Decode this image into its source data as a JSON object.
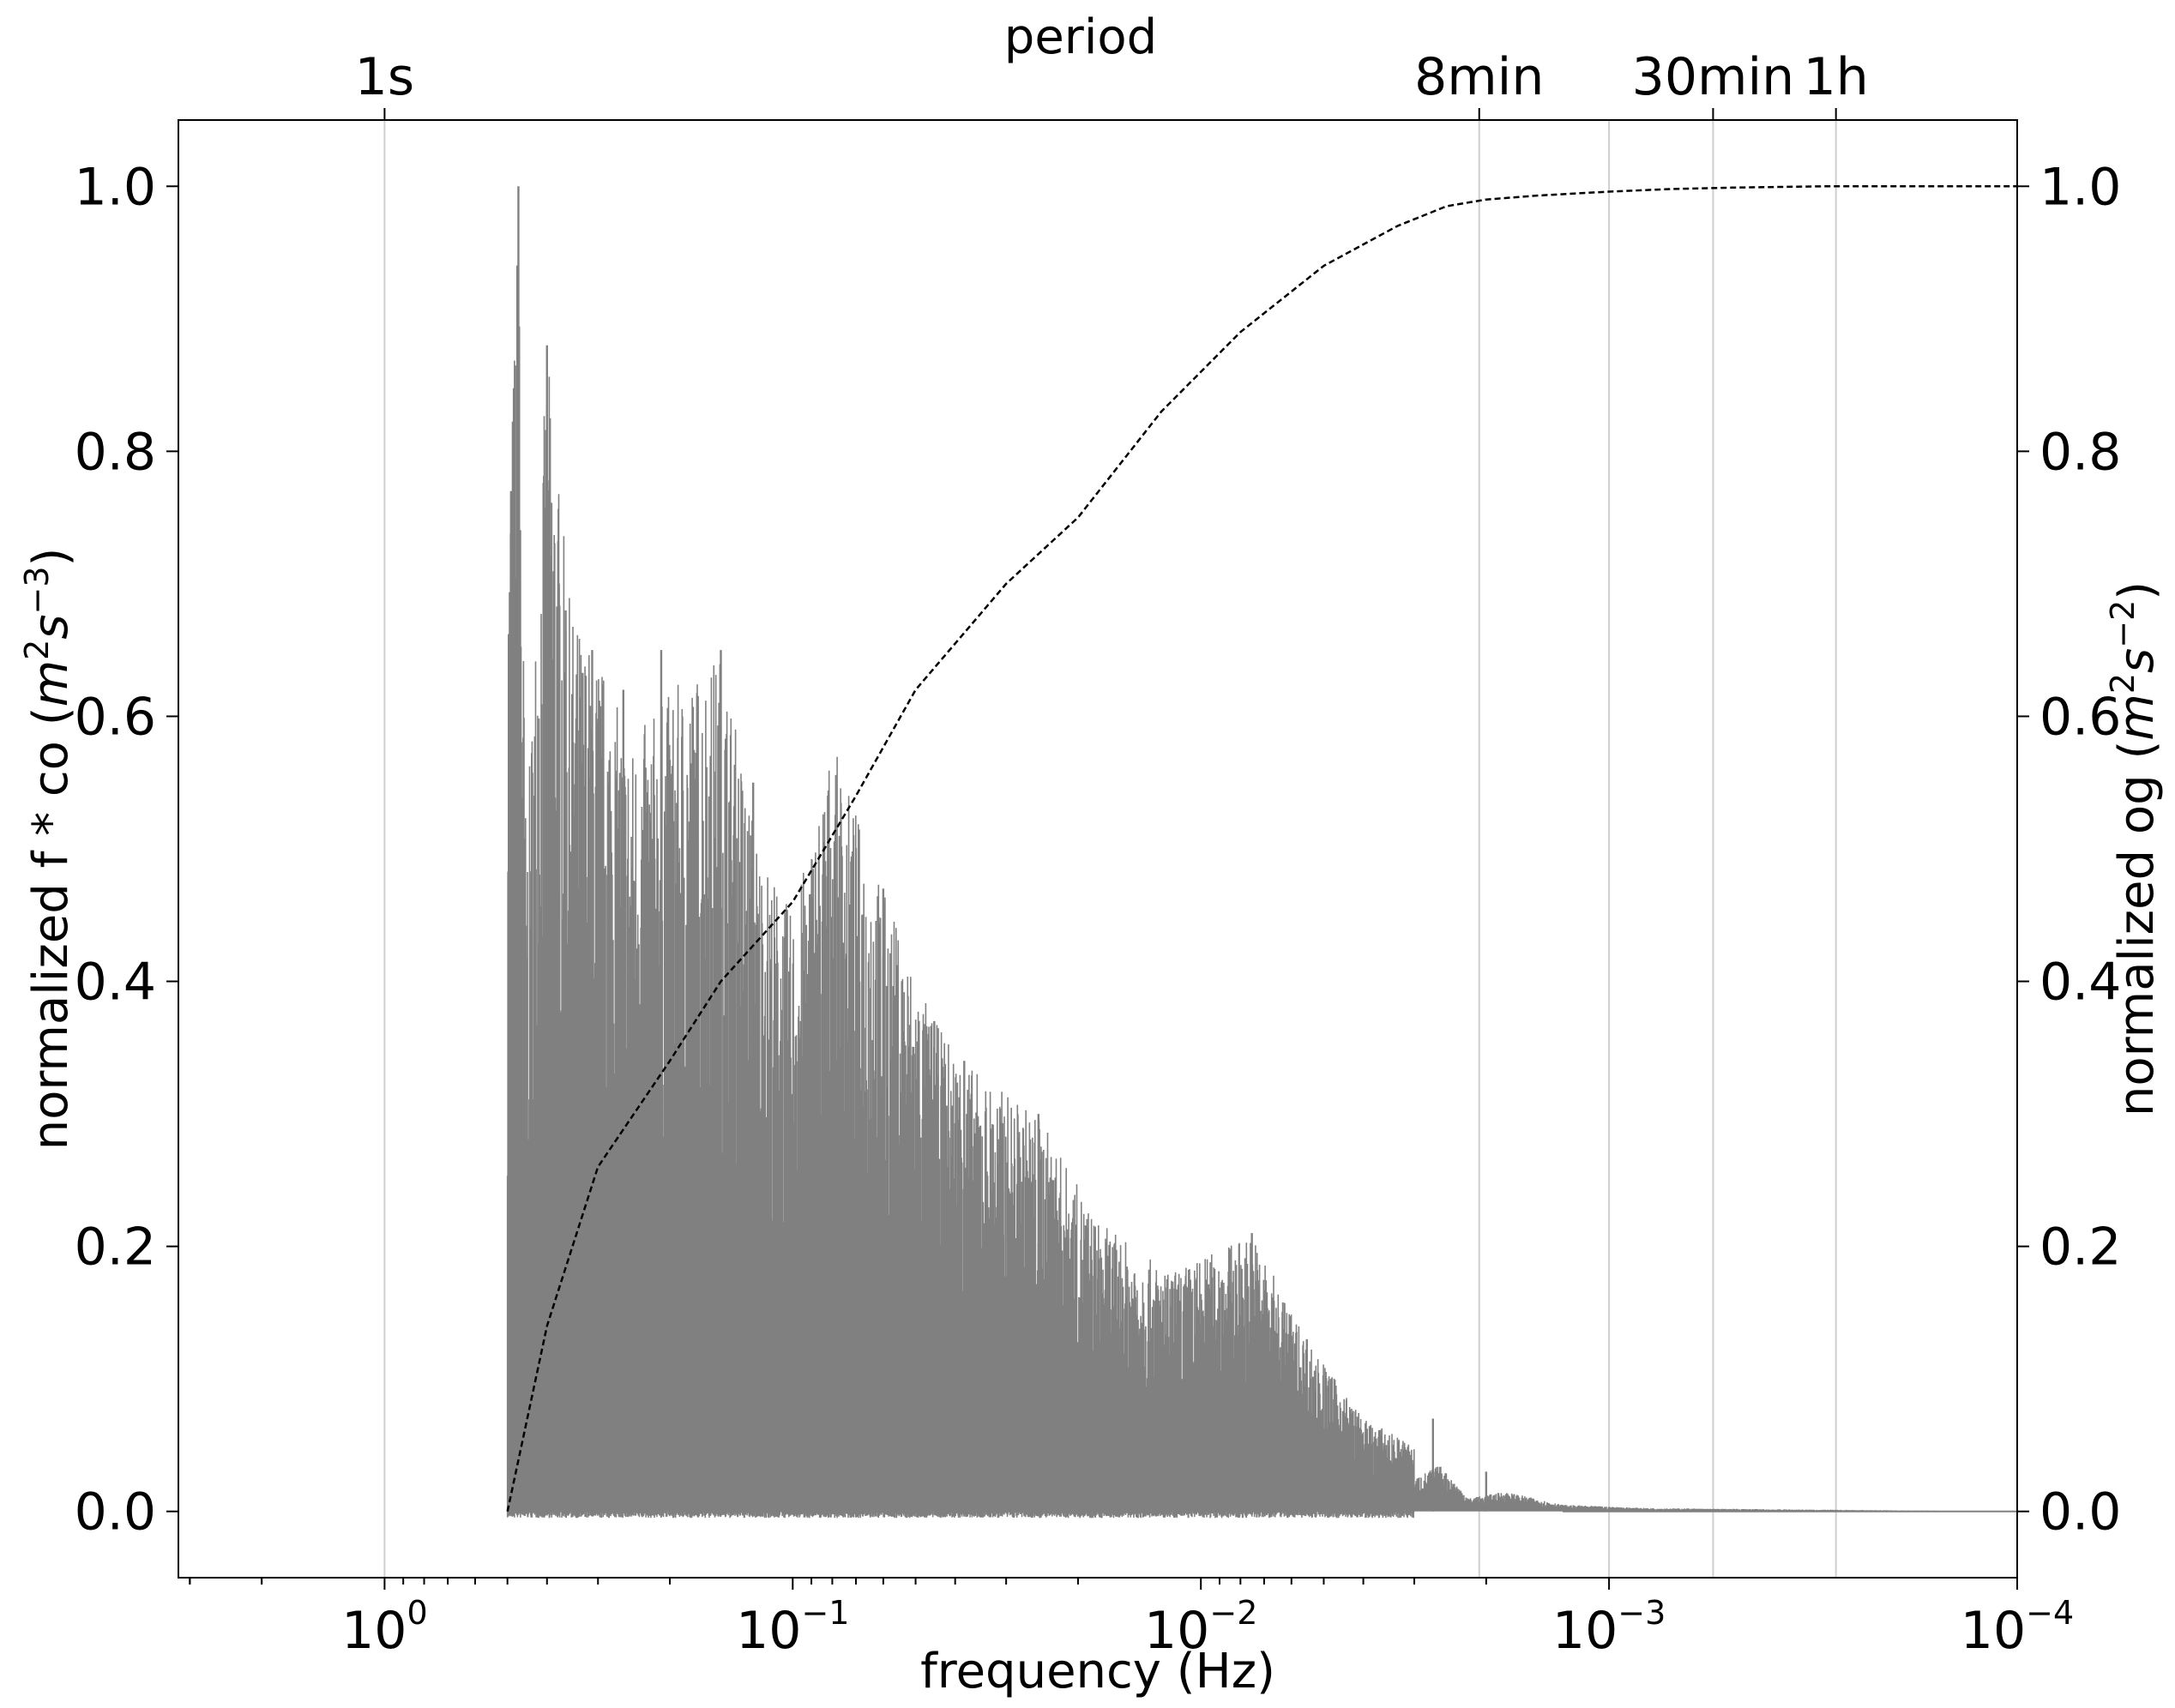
{
  "chart_data": {
    "type": "line",
    "x_axis": {
      "label": "frequency (Hz)",
      "scale": "log",
      "reversed": true,
      "range": [
        3.2,
        0.0001
      ],
      "ticks": [
        {
          "value": 1,
          "mantissa": "10",
          "exponent": "0"
        },
        {
          "value": 0.1,
          "mantissa": "10",
          "exponent": "−1"
        },
        {
          "value": 0.01,
          "mantissa": "10",
          "exponent": "−2"
        },
        {
          "value": 0.001,
          "mantissa": "10",
          "exponent": "−3"
        },
        {
          "value": 0.0001,
          "mantissa": "10",
          "exponent": "−4"
        }
      ]
    },
    "top_axis": {
      "label": "period",
      "ticks": [
        {
          "label": "1s",
          "frequency": 1
        },
        {
          "label": "8min",
          "frequency": 0.00208
        },
        {
          "label": "30min",
          "frequency": 0.000556
        },
        {
          "label": "1h",
          "frequency": 0.000278
        }
      ]
    },
    "left_axis": {
      "label_prefix": "normalized f * co (",
      "label_base": "m",
      "label_sup1": "2",
      "label_mid": "s",
      "label_sup2": "−3",
      "label_suffix": ")",
      "range": [
        -0.05,
        1.05
      ],
      "ticks": [
        "0.0",
        "0.2",
        "0.4",
        "0.6",
        "0.8",
        "1.0"
      ]
    },
    "right_axis": {
      "label_prefix": "normalized og (",
      "label_base": "m",
      "label_sup1": "2",
      "label_mid": "s",
      "label_sup2": "−2",
      "label_suffix": ")",
      "range": [
        -0.05,
        1.05
      ],
      "ticks": [
        "0.0",
        "0.2",
        "0.4",
        "0.6",
        "0.8",
        "1.0"
      ]
    },
    "gridlines_x": [
      1,
      0.00208,
      0.001,
      0.000556,
      0.000278
    ],
    "series": [
      {
        "style": "solid",
        "color": "#808080",
        "description_points": {
          "envelope": [
            [
              0.5,
              0.72
            ],
            [
              0.47,
              1.0
            ],
            [
              0.45,
              0.5
            ],
            [
              0.4,
              0.88
            ],
            [
              0.35,
              0.68
            ],
            [
              0.3,
              0.65
            ],
            [
              0.25,
              0.58
            ],
            [
              0.2,
              0.62
            ],
            [
              0.15,
              0.65
            ],
            [
              0.12,
              0.5
            ],
            [
              0.1,
              0.45
            ],
            [
              0.08,
              0.58
            ],
            [
              0.06,
              0.47
            ],
            [
              0.045,
              0.37
            ],
            [
              0.035,
              0.33
            ],
            [
              0.025,
              0.3
            ],
            [
              0.018,
              0.22
            ],
            [
              0.012,
              0.18
            ],
            [
              0.0075,
              0.21
            ],
            [
              0.0055,
              0.13
            ],
            [
              0.004,
              0.07
            ],
            [
              0.003,
              0.05
            ],
            [
              0.0026,
              0.07
            ],
            [
              0.0022,
              0.02
            ],
            [
              0.0018,
              0.03
            ],
            [
              0.0013,
              0.01
            ],
            [
              0.0008,
              0.005
            ],
            [
              0.0001,
              0.0
            ]
          ],
          "spikes": [
            [
              0.47,
              1.0
            ],
            [
              0.4,
              0.88
            ],
            [
              0.49,
              0.77
            ],
            [
              0.36,
              0.68
            ],
            [
              0.31,
              0.65
            ],
            [
              0.26,
              0.62
            ],
            [
              0.21,
              0.65
            ],
            [
              0.15,
              0.65
            ],
            [
              0.125,
              0.55
            ],
            [
              0.082,
              0.54
            ],
            [
              0.06,
              0.47
            ],
            [
              0.045,
              0.37
            ],
            [
              0.038,
              0.34
            ],
            [
              0.025,
              0.3
            ],
            [
              0.023,
              0.25
            ],
            [
              0.0075,
              0.21
            ],
            [
              0.0055,
              0.13
            ],
            [
              0.0027,
              0.07
            ],
            [
              0.002,
              0.03
            ]
          ]
        }
      },
      {
        "style": "dashed",
        "color": "#000000",
        "x": [
          0.5,
          0.4,
          0.3,
          0.2,
          0.15,
          0.1,
          0.07,
          0.05,
          0.03,
          0.02,
          0.0125,
          0.008,
          0.005,
          0.0033,
          0.0025,
          0.002,
          0.0015,
          0.001,
          0.0007,
          0.0005,
          0.0003,
          0.0001
        ],
        "y": [
          0.0,
          0.14,
          0.26,
          0.34,
          0.4,
          0.46,
          0.54,
          0.62,
          0.7,
          0.75,
          0.83,
          0.89,
          0.94,
          0.97,
          0.985,
          0.99,
          0.993,
          0.996,
          0.998,
          0.999,
          1.0,
          1.0
        ]
      }
    ]
  }
}
